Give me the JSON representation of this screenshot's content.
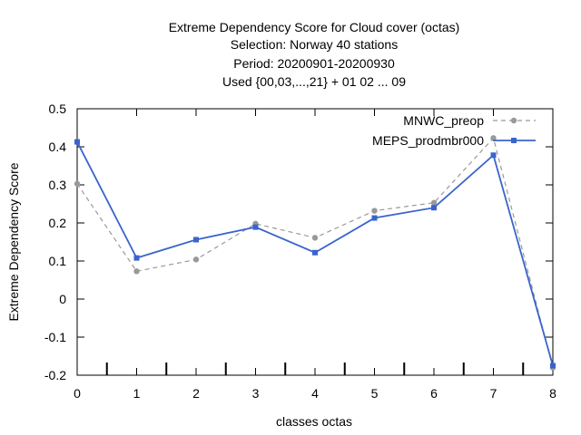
{
  "chart_data": {
    "type": "line",
    "title_lines": [
      "Extreme Dependency Score  for Cloud cover (octas)",
      "Selection: Norway     40 stations",
      "Period: 20200901-20200930",
      "Used {00,03,...,21} + 01 02 ... 09"
    ],
    "xlabel": "classes octas",
    "ylabel": "Extreme Dependency Score",
    "x": [
      0,
      1,
      2,
      3,
      4,
      5,
      6,
      7,
      8
    ],
    "xlim": [
      0,
      8
    ],
    "ylim": [
      -0.2,
      0.5
    ],
    "xticks": [
      "0",
      "1",
      "2",
      "3",
      "4",
      "5",
      "6",
      "7",
      "8"
    ],
    "yticks": [
      "-0.2",
      "-0.1",
      "0",
      "0.1",
      "0.2",
      "0.3",
      "0.4",
      "0.5"
    ],
    "ytick_values": [
      -0.2,
      -0.1,
      0,
      0.1,
      0.2,
      0.3,
      0.4,
      0.5
    ],
    "minor_x_marks": [
      0.5,
      1.5,
      2.5,
      3.5,
      4.5,
      5.5,
      6.5,
      7.5
    ],
    "legend_position": "top-right",
    "grid": false,
    "series": [
      {
        "name": "MNWC_preop",
        "values": [
          0.303,
          0.073,
          0.104,
          0.198,
          0.161,
          0.232,
          0.253,
          0.423,
          -0.18
        ],
        "color": "#999999",
        "style": "dashed",
        "marker": "circle"
      },
      {
        "name": "MEPS_prodmbr000",
        "values": [
          0.413,
          0.108,
          0.156,
          0.189,
          0.122,
          0.213,
          0.24,
          0.378,
          -0.175
        ],
        "color": "#3a64cc",
        "style": "solid",
        "marker": "square"
      }
    ]
  }
}
